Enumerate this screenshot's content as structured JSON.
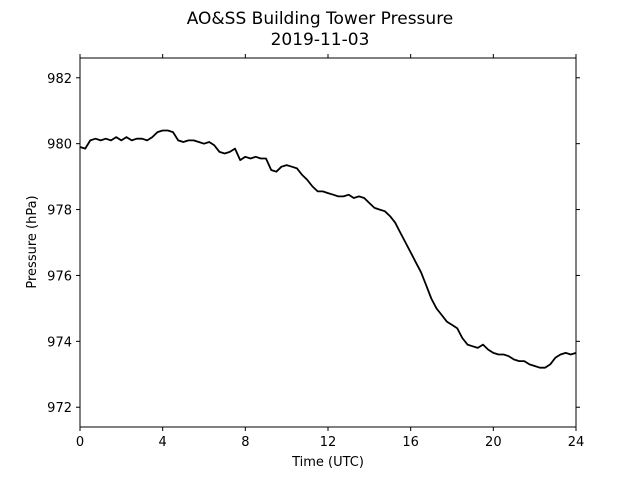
{
  "chart_data": {
    "type": "line",
    "title": "AO&SS Building Tower Pressure",
    "subtitle": "2019-11-03",
    "xlabel": "Time (UTC)",
    "ylabel": "Pressure (hPa)",
    "xlim": [
      0,
      24
    ],
    "ylim": [
      971.4,
      982.6
    ],
    "xticks": [
      0,
      4,
      8,
      12,
      16,
      20,
      24
    ],
    "yticks": [
      972,
      974,
      976,
      978,
      980,
      982
    ],
    "grid": false,
    "line_color": "#000000",
    "series": [
      {
        "x": [
          0.0,
          0.25,
          0.5,
          0.75,
          1.0,
          1.25,
          1.5,
          1.75,
          2.0,
          2.25,
          2.5,
          2.75,
          3.0,
          3.25,
          3.5,
          3.75,
          4.0,
          4.25,
          4.5,
          4.75,
          5.0,
          5.25,
          5.5,
          5.75,
          6.0,
          6.25,
          6.5,
          6.75,
          7.0,
          7.25,
          7.5,
          7.75,
          8.0,
          8.25,
          8.5,
          8.75,
          9.0,
          9.25,
          9.5,
          9.75,
          10.0,
          10.25,
          10.5,
          10.75,
          11.0,
          11.25,
          11.5,
          11.75,
          12.0,
          12.25,
          12.5,
          12.75,
          13.0,
          13.25,
          13.5,
          13.75,
          14.0,
          14.25,
          14.5,
          14.75,
          15.0,
          15.25,
          15.5,
          15.75,
          16.0,
          16.25,
          16.5,
          16.75,
          17.0,
          17.25,
          17.5,
          17.75,
          18.0,
          18.25,
          18.5,
          18.75,
          19.0,
          19.25,
          19.5,
          19.75,
          20.0,
          20.25,
          20.5,
          20.75,
          21.0,
          21.25,
          21.5,
          21.75,
          22.0,
          22.25,
          22.5,
          22.75,
          23.0,
          23.25,
          23.5,
          23.75,
          24.0
        ],
        "y": [
          979.9,
          979.85,
          980.1,
          980.15,
          980.1,
          980.15,
          980.1,
          980.2,
          980.1,
          980.2,
          980.1,
          980.15,
          980.15,
          980.1,
          980.2,
          980.35,
          980.4,
          980.4,
          980.35,
          980.1,
          980.05,
          980.1,
          980.1,
          980.05,
          980.0,
          980.05,
          979.95,
          979.75,
          979.7,
          979.75,
          979.85,
          979.5,
          979.6,
          979.55,
          979.6,
          979.55,
          979.55,
          979.2,
          979.15,
          979.3,
          979.35,
          979.3,
          979.25,
          979.05,
          978.9,
          978.7,
          978.55,
          978.55,
          978.5,
          978.45,
          978.4,
          978.4,
          978.45,
          978.35,
          978.4,
          978.35,
          978.2,
          978.05,
          978.0,
          977.95,
          977.8,
          977.6,
          977.3,
          977.0,
          976.7,
          976.4,
          976.1,
          975.7,
          975.3,
          975.0,
          974.8,
          974.6,
          974.5,
          974.4,
          974.1,
          973.9,
          973.85,
          973.8,
          973.9,
          973.75,
          973.65,
          973.6,
          973.6,
          973.55,
          973.45,
          973.4,
          973.4,
          973.3,
          973.25,
          973.2,
          973.2,
          973.3,
          973.5,
          973.6,
          973.65,
          973.6,
          973.65
        ]
      }
    ]
  }
}
